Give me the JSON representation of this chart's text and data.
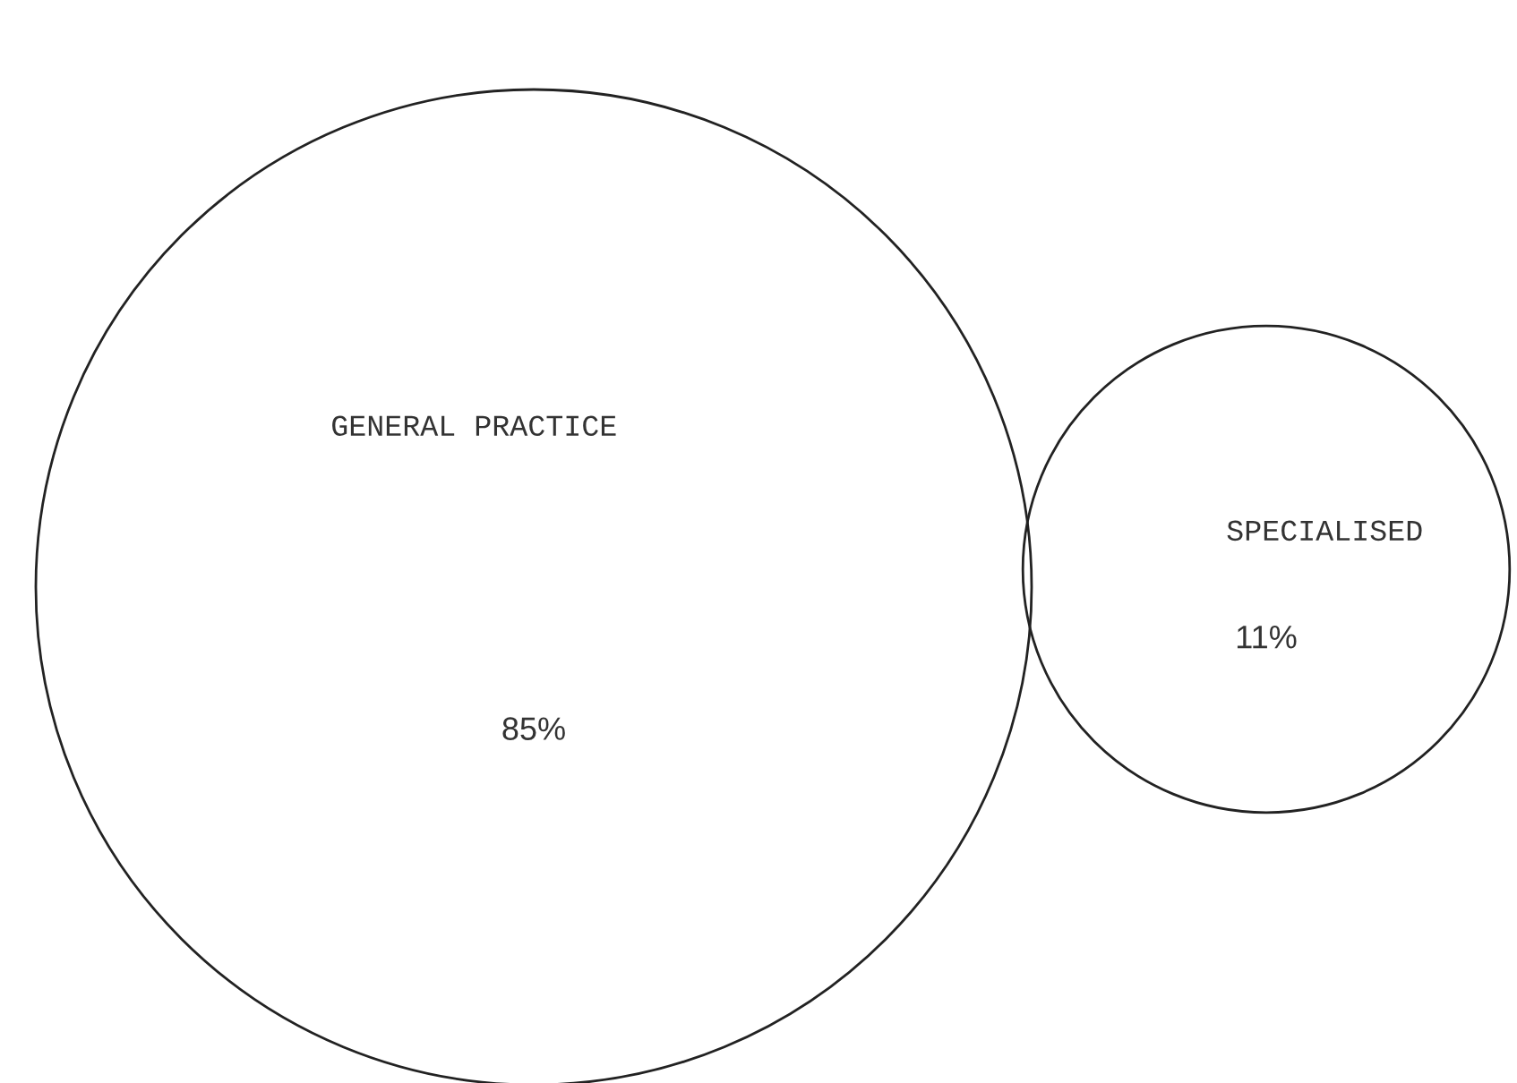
{
  "chart_data": {
    "type": "other",
    "categories": [
      "GENERAL PRACTICE",
      "SPECIALISED"
    ],
    "values": [
      85,
      11
    ],
    "value_labels": [
      "85%",
      "11%"
    ],
    "colors": [
      "#ffffff",
      "#ffffff"
    ]
  }
}
